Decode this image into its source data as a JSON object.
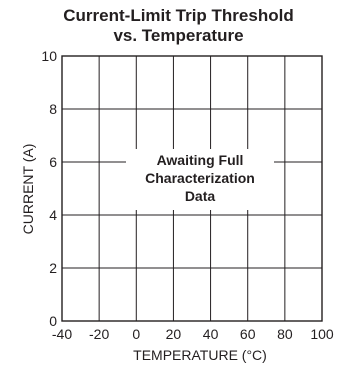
{
  "chart_data": {
    "type": "line",
    "title_lines": [
      "Current-Limit Trip Threshold",
      "vs. Temperature"
    ],
    "xlabel": "TEMPERATURE (°C)",
    "ylabel": "CURRENT (A)",
    "xlim": [
      -40,
      100
    ],
    "ylim": [
      0,
      10
    ],
    "x_ticks": [
      -40,
      -20,
      0,
      20,
      40,
      60,
      80,
      100
    ],
    "y_ticks": [
      0,
      2,
      4,
      6,
      8,
      10
    ],
    "grid": true,
    "series": [],
    "annotation_lines": [
      "Awaiting Full",
      "Characterization",
      "Data"
    ]
  },
  "colors": {
    "ink": "#231f20",
    "background": "#ffffff"
  }
}
